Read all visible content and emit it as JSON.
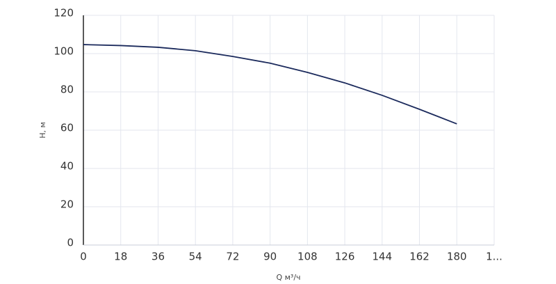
{
  "chart_data": {
    "type": "line",
    "x_label": "Q м³/ч",
    "y_label": "H, м",
    "x": [
      0,
      18,
      36,
      54,
      72,
      90,
      108,
      126,
      144,
      162,
      180
    ],
    "series": [
      {
        "name": "H",
        "color": "#1b2a5c",
        "values": [
          104.7,
          104.2,
          103.3,
          101.5,
          98.5,
          95,
          90.2,
          84.7,
          78.2,
          70.9,
          63.3
        ]
      }
    ],
    "xlim": [
      0,
      198
    ],
    "ylim": [
      0,
      120
    ],
    "xticks": [
      0,
      18,
      36,
      54,
      72,
      90,
      108,
      126,
      144,
      162,
      180,
      {
        "value": 198,
        "label": "1..."
      }
    ],
    "yticks": [
      0,
      20,
      40,
      60,
      80,
      100,
      120
    ],
    "grid": true
  }
}
